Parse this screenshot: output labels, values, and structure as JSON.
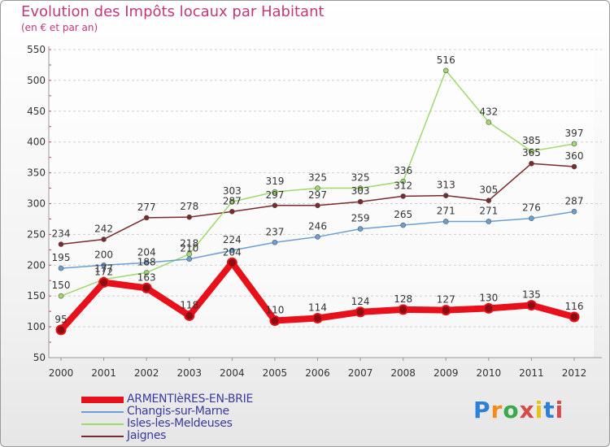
{
  "title": "Evolution des Impôts locaux par Habitant",
  "subtitle": "(en € et par an)",
  "brand": {
    "text": "Proxiti",
    "colors": [
      "#2e7fd6",
      "#f28c1b",
      "#3aa84a",
      "#d84a4a",
      "#e6c21a",
      "#2e7fd6",
      "#d84a4a"
    ]
  },
  "chart_data": {
    "type": "line",
    "x": [
      "2000",
      "2001",
      "2002",
      "2003",
      "2004",
      "2005",
      "2006",
      "2007",
      "2008",
      "2009",
      "2010",
      "2011",
      "2012"
    ],
    "yticks": [
      "550",
      "500",
      "450",
      "400",
      "350",
      "300",
      "250",
      "200",
      "150",
      "100",
      "50"
    ],
    "ylim": [
      50,
      550
    ],
    "grid": "horizontal dashed",
    "legend_position": "bottom-left",
    "series": [
      {
        "name": "ARMENTIèRES-EN-BRIE",
        "color": "#e8101a",
        "emphasis": true,
        "values": [
          95,
          172,
          163,
          118,
          204,
          110,
          114,
          124,
          128,
          127,
          130,
          135,
          116
        ]
      },
      {
        "name": "Changis-sur-Marne",
        "color": "#6a9fd4",
        "values": [
          195,
          200,
          204,
          210,
          224,
          237,
          246,
          259,
          265,
          271,
          271,
          276,
          287
        ]
      },
      {
        "name": "Isles-les-Meldeuses",
        "color": "#9ed96b",
        "values": [
          150,
          177,
          188,
          218,
          303,
          319,
          325,
          325,
          336,
          516,
          432,
          385,
          397
        ]
      },
      {
        "name": "Jaignes",
        "color": "#7a2a2a",
        "values": [
          234,
          242,
          277,
          278,
          287,
          297,
          297,
          303,
          312,
          313,
          305,
          365,
          360
        ]
      }
    ]
  }
}
